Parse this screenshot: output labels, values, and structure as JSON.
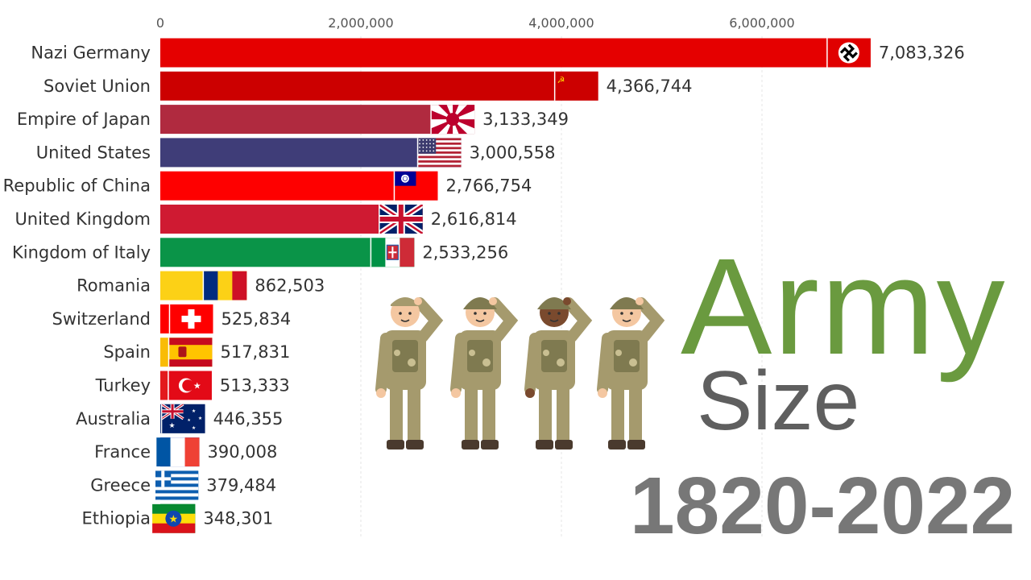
{
  "title": {
    "line1": "Army",
    "line2": "Size",
    "line3": "1820-2022",
    "colors": {
      "line1": "#6a9a3f",
      "line2": "#5f5f5f",
      "line3": "#777777"
    }
  },
  "chart_data": {
    "type": "bar",
    "orientation": "horizontal",
    "categories": [
      "Nazi Germany",
      "Soviet Union",
      "Empire of Japan",
      "United States",
      "Republic of China",
      "United Kingdom",
      "Kingdom of Italy",
      "Romania",
      "Switzerland",
      "Spain",
      "Turkey",
      "Australia",
      "France",
      "Greece",
      "Ethiopia"
    ],
    "values": [
      7083326,
      4366744,
      3133349,
      3000558,
      2766754,
      2616814,
      2533256,
      862503,
      525834,
      517831,
      513333,
      446355,
      390008,
      379484,
      348301
    ],
    "value_labels": [
      "7,083,326",
      "4,366,744",
      "3,133,349",
      "3,000,558",
      "2,766,754",
      "2,616,814",
      "2,533,256",
      "862,503",
      "525,834",
      "517,831",
      "513,333",
      "446,355",
      "390,008",
      "379,484",
      "348,301"
    ],
    "colors": [
      "#e50000",
      "#cc0000",
      "#b02a3f",
      "#3f3d78",
      "#fe0000",
      "#cf1a32",
      "#0a9448",
      "#fcd116",
      "#fe0000",
      "#f9bc06",
      "#e31a1c",
      "#012169",
      "#0b2caa",
      "#0c5fb4",
      "#078930"
    ],
    "flags": [
      "germany-flag-icon",
      "ussr-flag-icon",
      "japan-rising-sun-flag-icon",
      "usa-flag-icon",
      "roc-flag-icon",
      "uk-flag-icon",
      "italy-flag-icon",
      "romania-flag-icon",
      "switzerland-flag-icon",
      "spain-flag-icon",
      "turkey-flag-icon",
      "australia-flag-icon",
      "france-flag-icon",
      "greece-flag-icon",
      "ethiopia-flag-icon"
    ],
    "x_ticks": [
      0,
      2000000,
      4000000,
      6000000
    ],
    "x_tick_labels": [
      "0",
      "2,000,000",
      "4,000,000",
      "6,000,000"
    ],
    "xlim": [
      0,
      7083326
    ],
    "grid": true,
    "title": "",
    "xlabel": "",
    "ylabel": ""
  }
}
